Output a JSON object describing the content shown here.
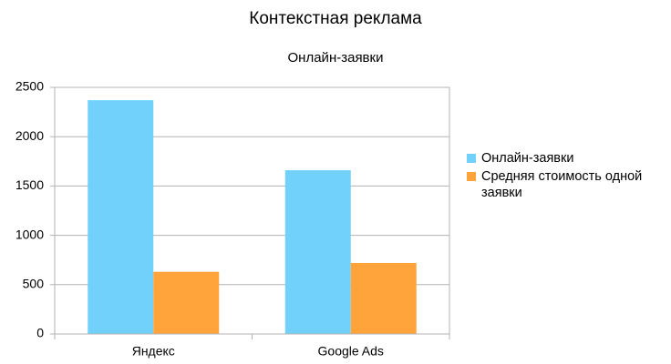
{
  "chart_data": {
    "type": "bar",
    "title": "Контекстная реклама",
    "subtitle": "Онлайн-заявки",
    "categories": [
      "Яндекс",
      "Google Ads"
    ],
    "series": [
      {
        "name": "Онлайн-заявки",
        "color": "#72d1fb",
        "values": [
          2370,
          1660
        ]
      },
      {
        "name": "Средняя стоимость одной заявки",
        "color": "#ffa33a",
        "values": [
          630,
          720
        ]
      }
    ],
    "ylim": [
      0,
      2500
    ],
    "yticks": [
      0,
      500,
      1000,
      1500,
      2000,
      2500
    ],
    "grid": true,
    "legend": "right"
  }
}
